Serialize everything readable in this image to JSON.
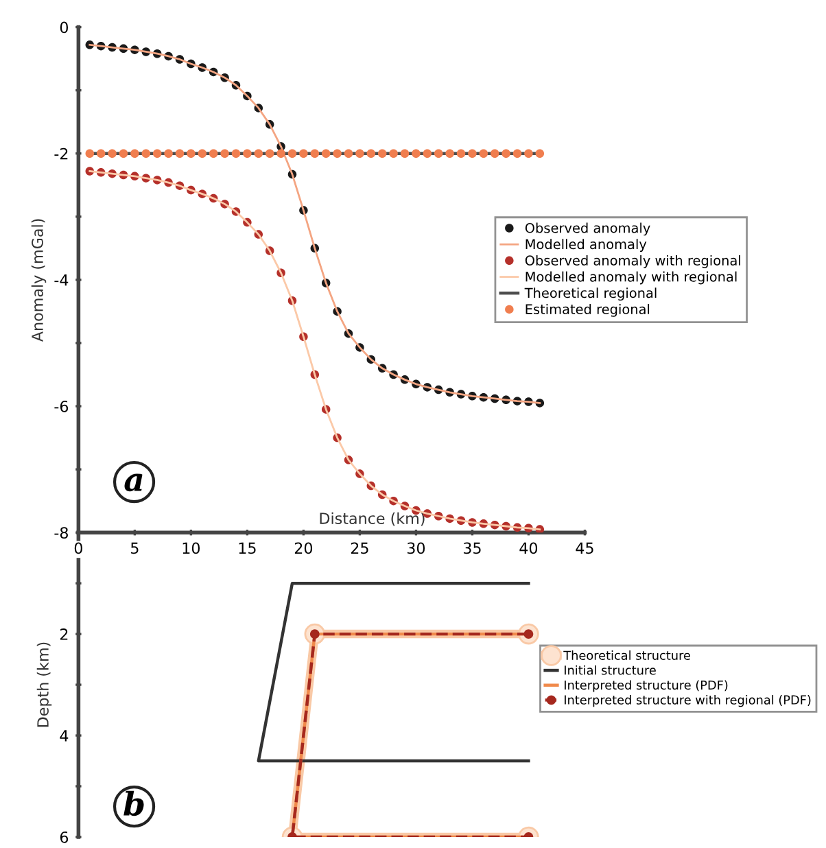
{
  "chart_data": [
    {
      "type": "line",
      "xlabel": "Distance (km)",
      "ylabel": "Anomaly (mGal)",
      "x": [
        1,
        2,
        3,
        4,
        5,
        6,
        7,
        8,
        9,
        10,
        11,
        12,
        13,
        14,
        15,
        16,
        17,
        18,
        19,
        20,
        21,
        22,
        23,
        24,
        25,
        26,
        27,
        28,
        29,
        30,
        31,
        32,
        33,
        34,
        35,
        36,
        37,
        38,
        39,
        40,
        41
      ],
      "xlim": [
        0,
        45
      ],
      "xticks": [
        0,
        5,
        10,
        15,
        20,
        25,
        30,
        35,
        40,
        45
      ],
      "ylim": [
        -8,
        0
      ],
      "yticks": [
        -8,
        {
          "value": -7,
          "label": null
        },
        -6,
        {
          "value": -5,
          "label": null
        },
        -4,
        {
          "value": -3,
          "label": null
        },
        -2,
        {
          "value": -1,
          "label": null
        },
        0
      ],
      "legend": "right",
      "annotations": [
        "a"
      ],
      "series": [
        {
          "name": "Observed anomaly",
          "color": "#1a1a1a",
          "type": "scatter",
          "marker": "circle",
          "values": [
            -0.28,
            -0.3,
            -0.32,
            -0.34,
            -0.36,
            -0.39,
            -0.42,
            -0.46,
            -0.51,
            -0.58,
            -0.64,
            -0.71,
            -0.8,
            -0.92,
            -1.09,
            -1.28,
            -1.54,
            -1.89,
            -2.33,
            -2.9,
            -3.5,
            -4.05,
            -4.5,
            -4.85,
            -5.07,
            -5.26,
            -5.4,
            -5.5,
            -5.58,
            -5.65,
            -5.7,
            -5.74,
            -5.78,
            -5.81,
            -5.84,
            -5.86,
            -5.88,
            -5.9,
            -5.92,
            -5.93,
            -5.95
          ]
        },
        {
          "name": "Modelled anomaly",
          "color": "#f4a582",
          "marker": "none",
          "values": [
            -0.28,
            -0.3,
            -0.32,
            -0.34,
            -0.36,
            -0.39,
            -0.42,
            -0.46,
            -0.51,
            -0.58,
            -0.64,
            -0.71,
            -0.8,
            -0.92,
            -1.09,
            -1.28,
            -1.54,
            -1.89,
            -2.33,
            -2.9,
            -3.5,
            -4.05,
            -4.5,
            -4.85,
            -5.07,
            -5.26,
            -5.4,
            -5.5,
            -5.58,
            -5.65,
            -5.7,
            -5.74,
            -5.78,
            -5.81,
            -5.84,
            -5.86,
            -5.88,
            -5.9,
            -5.92,
            -5.93,
            -5.95
          ]
        },
        {
          "name": "Observed anomaly with regional",
          "color": "#b5302a",
          "type": "scatter",
          "marker": "circle",
          "values": [
            -2.28,
            -2.3,
            -2.32,
            -2.34,
            -2.36,
            -2.39,
            -2.42,
            -2.46,
            -2.51,
            -2.58,
            -2.64,
            -2.71,
            -2.8,
            -2.92,
            -3.09,
            -3.28,
            -3.54,
            -3.89,
            -4.33,
            -4.9,
            -5.5,
            -6.05,
            -6.5,
            -6.85,
            -7.07,
            -7.26,
            -7.4,
            -7.5,
            -7.58,
            -7.65,
            -7.7,
            -7.74,
            -7.78,
            -7.81,
            -7.84,
            -7.86,
            -7.88,
            -7.9,
            -7.92,
            -7.93,
            -7.95
          ]
        },
        {
          "name": "Modelled anomaly with regional",
          "color": "#fbc9a8",
          "marker": "none",
          "values": [
            -2.28,
            -2.3,
            -2.32,
            -2.34,
            -2.36,
            -2.39,
            -2.42,
            -2.46,
            -2.51,
            -2.58,
            -2.64,
            -2.71,
            -2.8,
            -2.92,
            -3.09,
            -3.28,
            -3.54,
            -3.89,
            -4.33,
            -4.9,
            -5.5,
            -6.05,
            -6.5,
            -6.85,
            -7.07,
            -7.26,
            -7.4,
            -7.5,
            -7.58,
            -7.65,
            -7.7,
            -7.74,
            -7.78,
            -7.81,
            -7.84,
            -7.86,
            -7.88,
            -7.9,
            -7.92,
            -7.93,
            -7.95
          ]
        },
        {
          "name": "Theoretical regional",
          "color": "#4d4d4d",
          "marker": "none",
          "x": [
            1,
            41
          ],
          "values": [
            -2,
            -2
          ]
        },
        {
          "name": "Estimated regional",
          "color": "#f07e4f",
          "type": "scatter",
          "marker": "circle",
          "values": [
            -2,
            -2,
            -2,
            -2,
            -2,
            -2,
            -2,
            -2,
            -2,
            -2,
            -2,
            -2,
            -2,
            -2,
            -2,
            -2,
            -2,
            -2,
            -2,
            -2,
            -2,
            -2,
            -2,
            -2,
            -2,
            -2,
            -2,
            -2,
            -2,
            -2,
            -2,
            -2,
            -2,
            -2,
            -2,
            -2,
            -2,
            -2,
            -2,
            -2,
            -2
          ]
        }
      ]
    },
    {
      "type": "line",
      "ylabel": "Depth (km)",
      "xlim": [
        0,
        45
      ],
      "ylim": [
        6,
        0
      ],
      "tick_labels": "y",
      "yticks": [
        {
          "value": 1,
          "label": null
        },
        2,
        {
          "value": 3,
          "label": null
        },
        4,
        {
          "value": 5,
          "label": null
        },
        6
      ],
      "legend": "right",
      "annotations": [
        "b"
      ],
      "series": [
        {
          "name": "Theoretical structure",
          "color": "#f9c9a6",
          "marker": "circle",
          "x": [
            40,
            21,
            19,
            40
          ],
          "values": [
            2,
            2,
            6,
            6
          ]
        },
        {
          "name": "Initial structure",
          "color": "#333333",
          "marker": "none",
          "x": [
            40,
            19,
            16,
            40
          ],
          "values": [
            1,
            1,
            4.5,
            4.5
          ]
        },
        {
          "name": "Interpreted structure (PDF)",
          "color": "#f08a4b",
          "marker": "none",
          "x": [
            40,
            21,
            19,
            40
          ],
          "values": [
            2,
            2,
            6,
            6
          ]
        },
        {
          "name": "Interpreted structure with regional (PDF)",
          "color": "#a5281e",
          "marker": "circle",
          "line_style": "dashed",
          "x": [
            40,
            21,
            19,
            40
          ],
          "values": [
            2,
            2,
            6,
            6
          ]
        }
      ]
    }
  ]
}
